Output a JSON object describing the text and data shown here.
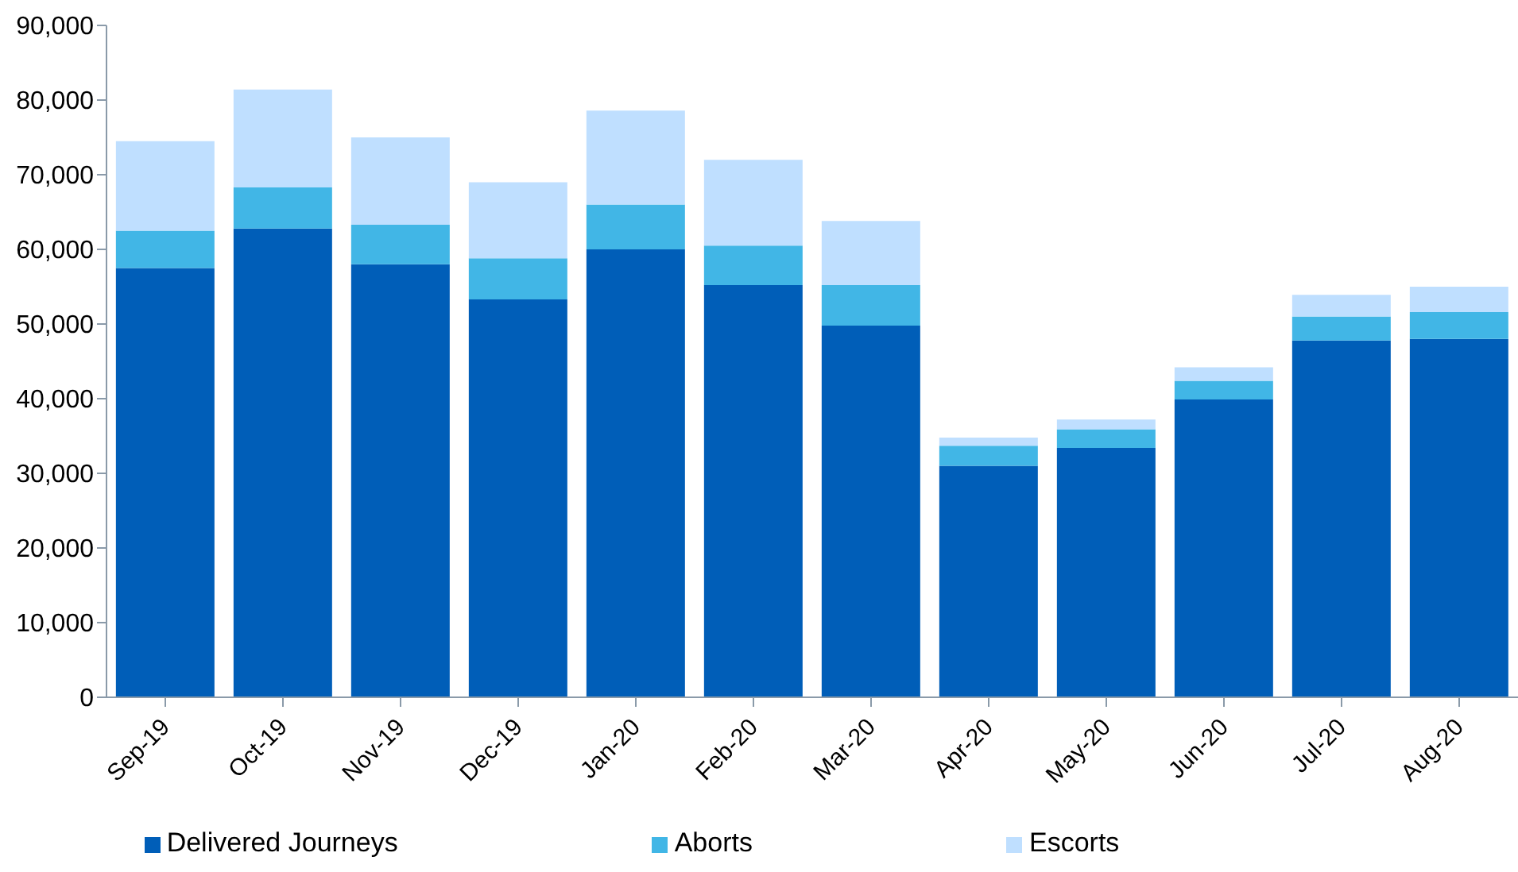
{
  "chart_data": {
    "type": "bar",
    "stacked": true,
    "categories": [
      "Sep-19",
      "Oct-19",
      "Nov-19",
      "Dec-19",
      "Jan-20",
      "Feb-20",
      "Mar-20",
      "Apr-20",
      "May-20",
      "Jun-20",
      "Jul-20",
      "Aug-20"
    ],
    "series": [
      {
        "name": "Delivered Journeys",
        "color": "#005eb8",
        "values": [
          57500,
          62800,
          58000,
          53300,
          60000,
          55200,
          49800,
          31000,
          33400,
          39900,
          47800,
          48000
        ]
      },
      {
        "name": "Aborts",
        "color": "#41b6e6",
        "values": [
          5000,
          5500,
          5300,
          5500,
          6000,
          5300,
          5400,
          2700,
          2500,
          2500,
          3200,
          3600
        ]
      },
      {
        "name": "Escorts",
        "color": "#bfdfff",
        "values": [
          12000,
          13100,
          11700,
          10200,
          12600,
          11500,
          8600,
          1100,
          1300,
          1800,
          2900,
          3400
        ]
      }
    ],
    "ylim": [
      0,
      90000
    ],
    "yticks": [
      0,
      {
        "value": 10000,
        "label": "10,000"
      },
      {
        "value": 20000,
        "label": "20,000"
      },
      {
        "value": 30000,
        "label": "30,000"
      },
      {
        "value": 40000,
        "label": "40,000"
      },
      {
        "value": 50000,
        "label": "50,000"
      },
      {
        "value": 60000,
        "label": "60,000"
      },
      {
        "value": 70000,
        "label": "70,000"
      },
      {
        "value": 80000,
        "label": "80,000"
      },
      {
        "value": 90000,
        "label": "90,000"
      }
    ],
    "legend": "bottom"
  }
}
